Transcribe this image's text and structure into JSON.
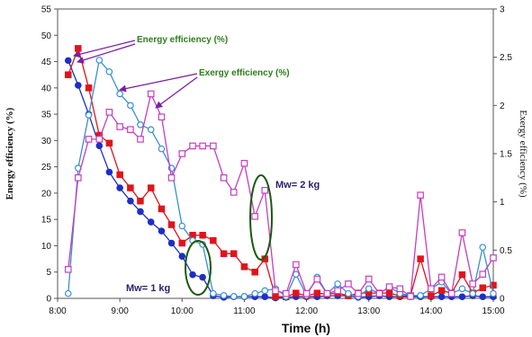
{
  "chart_data": {
    "type": "line",
    "title": "",
    "xlabel": "Time (h)",
    "ylabel": "Energy efficiency (%)",
    "y2label": "Exergy efficiency (%)",
    "xlim": [
      8.0,
      15.0
    ],
    "ylim": [
      0,
      55
    ],
    "y2lim": [
      0,
      3
    ],
    "x_ticks": [
      {
        "value": 8.0,
        "label": "8:00"
      },
      {
        "value": 9.0,
        "label": "9:00"
      },
      {
        "value": 10.0,
        "label": "10:00"
      },
      {
        "value": 11.0,
        "label": "11:00"
      },
      {
        "value": 12.0,
        "label": "12:00"
      },
      {
        "value": 13.0,
        "label": "13:00"
      },
      {
        "value": 14.0,
        "label": "14:00"
      },
      {
        "value": 15.0,
        "label": "15:00"
      }
    ],
    "y_ticks": [
      0,
      5,
      10,
      15,
      20,
      25,
      30,
      35,
      40,
      45,
      50,
      55
    ],
    "y2_ticks": [
      {
        "value": 0,
        "label": "0"
      },
      {
        "value": 0.5,
        "label": "0.5"
      },
      {
        "value": 1,
        "label": "1"
      },
      {
        "value": 1.5,
        "label": "1.5"
      },
      {
        "value": 2,
        "label": "2"
      },
      {
        "value": 2.5,
        "label": "2.5"
      },
      {
        "value": 3,
        "label": "3"
      }
    ],
    "grid": false,
    "series": [
      {
        "name": "",
        "axis": "left",
        "color": "#1d2fc4",
        "marker": "filled-circle",
        "points": [
          [
            8.17,
            45.2
          ],
          [
            8.33,
            40.5
          ],
          [
            8.5,
            35
          ],
          [
            8.67,
            29
          ],
          [
            8.83,
            24
          ],
          [
            9.0,
            21
          ],
          [
            9.17,
            18.5
          ],
          [
            9.33,
            16.5
          ],
          [
            9.5,
            14.5
          ],
          [
            9.67,
            12.8
          ],
          [
            9.83,
            10.5
          ],
          [
            10.0,
            8
          ],
          [
            10.17,
            4.5
          ],
          [
            10.33,
            4
          ],
          [
            10.5,
            0.5
          ],
          [
            10.67,
            0.2
          ],
          [
            10.83,
            0.3
          ],
          [
            11.0,
            0.3
          ],
          [
            11.17,
            0.3
          ],
          [
            11.33,
            0.3
          ],
          [
            11.5,
            0.1
          ],
          [
            11.67,
            0.2
          ],
          [
            11.83,
            0.3
          ],
          [
            12.0,
            0.3
          ],
          [
            12.17,
            0.3
          ],
          [
            12.33,
            0.5
          ],
          [
            12.5,
            0.5
          ],
          [
            12.67,
            0.5
          ],
          [
            12.83,
            0.2
          ],
          [
            13.0,
            0.3
          ],
          [
            13.17,
            0.5
          ],
          [
            13.33,
            0.3
          ],
          [
            13.5,
            0.3
          ],
          [
            13.67,
            0.3
          ],
          [
            13.83,
            0.3
          ],
          [
            14.0,
            0.3
          ],
          [
            14.17,
            0.3
          ],
          [
            14.33,
            0.3
          ],
          [
            14.5,
            0.3
          ],
          [
            14.67,
            0.5
          ],
          [
            14.83,
            0.3
          ],
          [
            15.0,
            0.3
          ]
        ]
      },
      {
        "name": "",
        "axis": "left",
        "color": "#e0141c",
        "marker": "filled-square",
        "points": [
          [
            8.17,
            42.5
          ],
          [
            8.33,
            47.5
          ],
          [
            8.5,
            40
          ],
          [
            8.67,
            31
          ],
          [
            8.83,
            29.5
          ],
          [
            9.0,
            23.5
          ],
          [
            9.17,
            21
          ],
          [
            9.33,
            18.5
          ],
          [
            9.5,
            21
          ],
          [
            9.67,
            17
          ],
          [
            9.83,
            14
          ],
          [
            10.0,
            10.5
          ],
          [
            10.17,
            12
          ],
          [
            10.33,
            12
          ],
          [
            10.5,
            11
          ],
          [
            10.67,
            8.5
          ],
          [
            10.83,
            8.5
          ],
          [
            11.0,
            6
          ],
          [
            11.17,
            5
          ],
          [
            11.33,
            7.5
          ],
          [
            11.5,
            0.3
          ],
          [
            11.67,
            0.3
          ],
          [
            11.83,
            1
          ],
          [
            12.0,
            0.5
          ],
          [
            12.17,
            1
          ],
          [
            12.33,
            0.8
          ],
          [
            12.5,
            1
          ],
          [
            12.67,
            0.5
          ],
          [
            12.83,
            1
          ],
          [
            13.0,
            1
          ],
          [
            13.17,
            1
          ],
          [
            13.33,
            1
          ],
          [
            13.5,
            0.5
          ],
          [
            13.67,
            0.5
          ],
          [
            13.83,
            7.5
          ],
          [
            14.0,
            0.5
          ],
          [
            14.17,
            1.5
          ],
          [
            14.33,
            1
          ],
          [
            14.5,
            4.5
          ],
          [
            14.67,
            1
          ],
          [
            14.83,
            2
          ],
          [
            15.0,
            2.5
          ]
        ]
      },
      {
        "name": "",
        "axis": "right",
        "color": "#3a8fd0",
        "marker": "open-circle",
        "points": [
          [
            8.17,
            0.05
          ],
          [
            8.33,
            1.35
          ],
          [
            8.5,
            1.9
          ],
          [
            8.67,
            2.47
          ],
          [
            8.83,
            2.35
          ],
          [
            9.0,
            2.12
          ],
          [
            9.17,
            2.0
          ],
          [
            9.33,
            1.8
          ],
          [
            9.5,
            1.75
          ],
          [
            9.67,
            1.55
          ],
          [
            9.83,
            1.35
          ],
          [
            10.0,
            0.75
          ],
          [
            10.17,
            0.6
          ],
          [
            10.33,
            0.56
          ],
          [
            10.5,
            0.05
          ],
          [
            10.67,
            0.03
          ],
          [
            10.83,
            0.02
          ],
          [
            11.0,
            0.02
          ],
          [
            11.17,
            0.05
          ],
          [
            11.33,
            0.08
          ],
          [
            11.5,
            0.1
          ],
          [
            11.67,
            0.02
          ],
          [
            11.83,
            0.25
          ],
          [
            12.0,
            0.03
          ],
          [
            12.17,
            0.22
          ],
          [
            12.33,
            0.05
          ],
          [
            12.5,
            0.15
          ],
          [
            12.67,
            0.05
          ],
          [
            12.83,
            0.02
          ],
          [
            13.0,
            0.1
          ],
          [
            13.17,
            0.05
          ],
          [
            13.33,
            0.12
          ],
          [
            13.5,
            0.05
          ],
          [
            13.67,
            0.03
          ],
          [
            13.83,
            0.03
          ],
          [
            14.0,
            0.1
          ],
          [
            14.17,
            0.17
          ],
          [
            14.33,
            0.05
          ],
          [
            14.5,
            0.1
          ],
          [
            14.67,
            0.05
          ],
          [
            14.83,
            0.53
          ],
          [
            15.0,
            0.05
          ]
        ]
      },
      {
        "name": "",
        "axis": "right",
        "color": "#c43fc0",
        "marker": "open-square",
        "points": [
          [
            8.17,
            0.3
          ],
          [
            8.33,
            1.25
          ],
          [
            8.5,
            1.65
          ],
          [
            8.67,
            1.65
          ],
          [
            8.83,
            1.93
          ],
          [
            9.0,
            1.78
          ],
          [
            9.17,
            1.75
          ],
          [
            9.33,
            1.65
          ],
          [
            9.5,
            2.12
          ],
          [
            9.67,
            1.88
          ],
          [
            9.83,
            1.25
          ],
          [
            10.0,
            1.5
          ],
          [
            10.17,
            1.58
          ],
          [
            10.33,
            1.58
          ],
          [
            10.5,
            1.58
          ],
          [
            10.67,
            1.25
          ],
          [
            10.83,
            1.1
          ],
          [
            11.0,
            1.4
          ],
          [
            11.17,
            0.85
          ],
          [
            11.33,
            1.12
          ],
          [
            11.5,
            0.08
          ],
          [
            11.67,
            0.05
          ],
          [
            11.83,
            0.35
          ],
          [
            12.0,
            0.05
          ],
          [
            12.17,
            0.2
          ],
          [
            12.33,
            0.05
          ],
          [
            12.5,
            0.08
          ],
          [
            12.67,
            0.15
          ],
          [
            12.83,
            0.05
          ],
          [
            13.0,
            0.2
          ],
          [
            13.17,
            0.05
          ],
          [
            13.33,
            0.12
          ],
          [
            13.5,
            0.1
          ],
          [
            13.67,
            0.02
          ],
          [
            13.83,
            1.07
          ],
          [
            14.0,
            0.1
          ],
          [
            14.17,
            0.22
          ],
          [
            14.33,
            0.05
          ],
          [
            14.5,
            0.68
          ],
          [
            14.67,
            0.15
          ],
          [
            14.83,
            0.25
          ],
          [
            15.0,
            0.42
          ]
        ]
      }
    ],
    "annotations": [
      {
        "text": "Energy efficiency (%)",
        "color": "#2e7d1a"
      },
      {
        "text": "Exergy efficiency (%)",
        "color": "#2e7d1a"
      },
      {
        "text": "Mw= 2 kg",
        "color": "#2b1f6b"
      },
      {
        "text": "Mw= 1 kg",
        "color": "#2b1f6b"
      }
    ]
  }
}
